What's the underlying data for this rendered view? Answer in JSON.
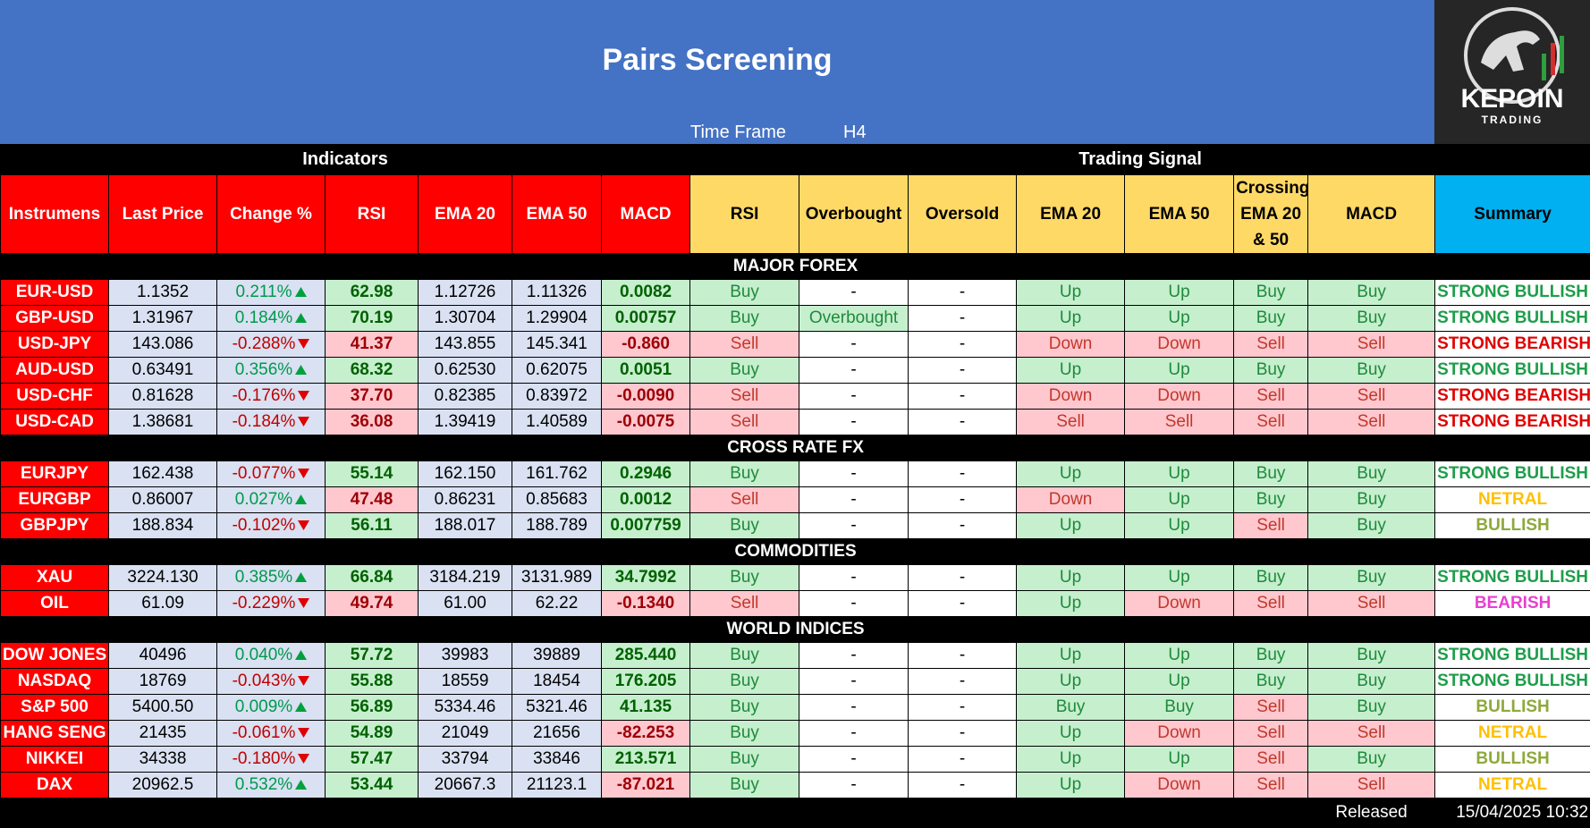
{
  "header": {
    "title": "Pairs Screening",
    "timeframe_label": "Time Frame",
    "timeframe": "H4",
    "logo": "KEPOIN",
    "logo_sub": "TRADING"
  },
  "groups": [
    "Indicators",
    "Trading Signal"
  ],
  "columns": [
    "Instrumens",
    "Last Price",
    "Change %",
    "RSI",
    "EMA 20",
    "EMA 50",
    "MACD",
    "RSI",
    "Overbought",
    "Oversold",
    "EMA 20",
    "EMA 50",
    "Crossing EMA 20 & 50",
    "MACD",
    "Summary"
  ],
  "column_fills": [
    "#ff0000",
    "#ff0000",
    "#ff0000",
    "#ff0000",
    "#ff0000",
    "#ff0000",
    "#ff0000",
    "#ffd966",
    "#ffd966",
    "#ffd966",
    "#ffd966",
    "#ffd966",
    "#ffd966",
    "#ffd966",
    "#00b0f0"
  ],
  "sections": [
    {
      "title": "MAJOR FOREX",
      "rows": [
        {
          "cells": [
            "EUR-USD",
            "1.1352",
            "0.211%",
            "62.98",
            "1.12726",
            "1.11326",
            "0.0082",
            "Buy",
            "-",
            "-",
            "Up",
            "Up",
            "Buy",
            "Buy",
            "STRONG BULLISH"
          ],
          "fills": [
            "#ff0000",
            "#d9e1f2",
            "#d9e1f2",
            "#c6efce",
            "#d9e1f2",
            "#d9e1f2",
            "#c6efce",
            "#c6efce",
            "#ffffff",
            "#ffffff",
            "#c6efce",
            "#c6efce",
            "#c6efce",
            "#c6efce",
            "#ffffff"
          ],
          "summary_color": "#1e9e4a"
        },
        {
          "cells": [
            "GBP-USD",
            "1.31967",
            "0.184%",
            "70.19",
            "1.30704",
            "1.29904",
            "0.00757",
            "Buy",
            "Overbought",
            "-",
            "Up",
            "Up",
            "Buy",
            "Buy",
            "STRONG BULLISH"
          ],
          "fills": [
            "#ff0000",
            "#d9e1f2",
            "#d9e1f2",
            "#c6efce",
            "#d9e1f2",
            "#d9e1f2",
            "#c6efce",
            "#c6efce",
            "#c6efce",
            "#ffffff",
            "#c6efce",
            "#c6efce",
            "#c6efce",
            "#c6efce",
            "#ffffff"
          ],
          "summary_color": "#1e9e4a"
        },
        {
          "cells": [
            "USD-JPY",
            "143.086",
            "-0.288%",
            "41.37",
            "143.855",
            "145.341",
            "-0.860",
            "Sell",
            "-",
            "-",
            "Down",
            "Down",
            "Sell",
            "Sell",
            "STRONG BEARISH"
          ],
          "fills": [
            "#ff0000",
            "#d9e1f2",
            "#d9e1f2",
            "#ffc7ce",
            "#d9e1f2",
            "#d9e1f2",
            "#ffc7ce",
            "#ffc7ce",
            "#ffffff",
            "#ffffff",
            "#ffc7ce",
            "#ffc7ce",
            "#ffc7ce",
            "#ffc7ce",
            "#ffffff"
          ],
          "summary_color": "#e00000"
        },
        {
          "cells": [
            "AUD-USD",
            "0.63491",
            "0.356%",
            "68.32",
            "0.62530",
            "0.62075",
            "0.0051",
            "Buy",
            "-",
            "-",
            "Up",
            "Up",
            "Buy",
            "Buy",
            "STRONG BULLISH"
          ],
          "fills": [
            "#ff0000",
            "#d9e1f2",
            "#d9e1f2",
            "#c6efce",
            "#d9e1f2",
            "#d9e1f2",
            "#c6efce",
            "#c6efce",
            "#ffffff",
            "#ffffff",
            "#c6efce",
            "#c6efce",
            "#c6efce",
            "#c6efce",
            "#ffffff"
          ],
          "summary_color": "#1e9e4a"
        },
        {
          "cells": [
            "USD-CHF",
            "0.81628",
            "-0.176%",
            "37.70",
            "0.82385",
            "0.83972",
            "-0.0090",
            "Sell",
            "-",
            "-",
            "Down",
            "Down",
            "Sell",
            "Sell",
            "STRONG BEARISH"
          ],
          "fills": [
            "#ff0000",
            "#d9e1f2",
            "#d9e1f2",
            "#ffc7ce",
            "#d9e1f2",
            "#d9e1f2",
            "#ffc7ce",
            "#ffc7ce",
            "#ffffff",
            "#ffffff",
            "#ffc7ce",
            "#ffc7ce",
            "#ffc7ce",
            "#ffc7ce",
            "#ffffff"
          ],
          "summary_color": "#e00000"
        },
        {
          "cells": [
            "USD-CAD",
            "1.38681",
            "-0.184%",
            "36.08",
            "1.39419",
            "1.40589",
            "-0.0075",
            "Sell",
            "-",
            "-",
            "Sell",
            "Sell",
            "Sell",
            "Sell",
            "STRONG BEARISH"
          ],
          "fills": [
            "#ff0000",
            "#d9e1f2",
            "#d9e1f2",
            "#ffc7ce",
            "#d9e1f2",
            "#d9e1f2",
            "#ffc7ce",
            "#ffc7ce",
            "#ffffff",
            "#ffffff",
            "#ffc7ce",
            "#ffc7ce",
            "#ffc7ce",
            "#ffc7ce",
            "#ffffff"
          ],
          "summary_color": "#e00000"
        }
      ]
    },
    {
      "title": "CROSS RATE FX",
      "rows": [
        {
          "cells": [
            "EURJPY",
            "162.438",
            "-0.077%",
            "55.14",
            "162.150",
            "161.762",
            "0.2946",
            "Buy",
            "-",
            "-",
            "Up",
            "Up",
            "Buy",
            "Buy",
            "STRONG BULLISH"
          ],
          "fills": [
            "#ff0000",
            "#d9e1f2",
            "#d9e1f2",
            "#c6efce",
            "#d9e1f2",
            "#d9e1f2",
            "#c6efce",
            "#c6efce",
            "#ffffff",
            "#ffffff",
            "#c6efce",
            "#c6efce",
            "#c6efce",
            "#c6efce",
            "#ffffff"
          ],
          "summary_color": "#1e9e4a"
        },
        {
          "cells": [
            "EURGBP",
            "0.86007",
            "0.027%",
            "47.48",
            "0.86231",
            "0.85683",
            "0.0012",
            "Sell",
            "-",
            "-",
            "Down",
            "Up",
            "Buy",
            "Buy",
            "NETRAL"
          ],
          "fills": [
            "#ff0000",
            "#d9e1f2",
            "#d9e1f2",
            "#ffc7ce",
            "#d9e1f2",
            "#d9e1f2",
            "#c6efce",
            "#ffc7ce",
            "#ffffff",
            "#ffffff",
            "#ffc7ce",
            "#c6efce",
            "#c6efce",
            "#c6efce",
            "#ffffff"
          ],
          "summary_color": "#ffc000"
        },
        {
          "cells": [
            "GBPJPY",
            "188.834",
            "-0.102%",
            "56.11",
            "188.017",
            "188.789",
            "0.007759",
            "Buy",
            "-",
            "-",
            "Up",
            "Up",
            "Sell",
            "Buy",
            "BULLISH"
          ],
          "fills": [
            "#ff0000",
            "#d9e1f2",
            "#d9e1f2",
            "#c6efce",
            "#d9e1f2",
            "#d9e1f2",
            "#c6efce",
            "#c6efce",
            "#ffffff",
            "#ffffff",
            "#c6efce",
            "#c6efce",
            "#ffc7ce",
            "#c6efce",
            "#ffffff"
          ],
          "summary_color": "#8ea93b"
        }
      ]
    },
    {
      "title": "COMMODITIES",
      "rows": [
        {
          "cells": [
            "XAU",
            "3224.130",
            "0.385%",
            "66.84",
            "3184.219",
            "3131.989",
            "34.7992",
            "Buy",
            "-",
            "-",
            "Up",
            "Up",
            "Buy",
            "Buy",
            "STRONG BULLISH"
          ],
          "fills": [
            "#ff0000",
            "#d9e1f2",
            "#d9e1f2",
            "#c6efce",
            "#d9e1f2",
            "#d9e1f2",
            "#c6efce",
            "#c6efce",
            "#ffffff",
            "#ffffff",
            "#c6efce",
            "#c6efce",
            "#c6efce",
            "#c6efce",
            "#ffffff"
          ],
          "summary_color": "#1e9e4a"
        },
        {
          "cells": [
            "OIL",
            "61.09",
            "-0.229%",
            "49.74",
            "61.00",
            "62.22",
            "-0.1340",
            "Sell",
            "-",
            "-",
            "Up",
            "Down",
            "Sell",
            "Sell",
            "BEARISH"
          ],
          "fills": [
            "#ff0000",
            "#d9e1f2",
            "#d9e1f2",
            "#ffc7ce",
            "#d9e1f2",
            "#d9e1f2",
            "#ffc7ce",
            "#ffc7ce",
            "#ffffff",
            "#ffffff",
            "#c6efce",
            "#ffc7ce",
            "#ffc7ce",
            "#ffc7ce",
            "#ffffff"
          ],
          "summary_color": "#e83fd0"
        }
      ]
    },
    {
      "title": "WORLD INDICES",
      "rows": [
        {
          "cells": [
            "DOW JONES",
            "40496",
            "0.040%",
            "57.72",
            "39983",
            "39889",
            "285.440",
            "Buy",
            "-",
            "-",
            "Up",
            "Up",
            "Buy",
            "Buy",
            "STRONG BULLISH"
          ],
          "fills": [
            "#ff0000",
            "#d9e1f2",
            "#d9e1f2",
            "#c6efce",
            "#d9e1f2",
            "#d9e1f2",
            "#c6efce",
            "#c6efce",
            "#ffffff",
            "#ffffff",
            "#c6efce",
            "#c6efce",
            "#c6efce",
            "#c6efce",
            "#ffffff"
          ],
          "summary_color": "#1e9e4a"
        },
        {
          "cells": [
            "NASDAQ",
            "18769",
            "-0.043%",
            "55.88",
            "18559",
            "18454",
            "176.205",
            "Buy",
            "-",
            "-",
            "Up",
            "Up",
            "Buy",
            "Buy",
            "STRONG BULLISH"
          ],
          "fills": [
            "#ff0000",
            "#d9e1f2",
            "#d9e1f2",
            "#c6efce",
            "#d9e1f2",
            "#d9e1f2",
            "#c6efce",
            "#c6efce",
            "#ffffff",
            "#ffffff",
            "#c6efce",
            "#c6efce",
            "#c6efce",
            "#c6efce",
            "#ffffff"
          ],
          "summary_color": "#1e9e4a"
        },
        {
          "cells": [
            "S&P 500",
            "5400.50",
            "0.009%",
            "56.89",
            "5334.46",
            "5321.46",
            "41.135",
            "Buy",
            "-",
            "-",
            "Buy",
            "Buy",
            "Sell",
            "Buy",
            "BULLISH"
          ],
          "fills": [
            "#ff0000",
            "#d9e1f2",
            "#d9e1f2",
            "#c6efce",
            "#d9e1f2",
            "#d9e1f2",
            "#c6efce",
            "#c6efce",
            "#ffffff",
            "#ffffff",
            "#c6efce",
            "#c6efce",
            "#ffc7ce",
            "#c6efce",
            "#ffffff"
          ],
          "summary_color": "#8ea93b"
        },
        {
          "cells": [
            "HANG SENG",
            "21435",
            "-0.061%",
            "54.89",
            "21049",
            "21656",
            "-82.253",
            "Buy",
            "-",
            "-",
            "Up",
            "Down",
            "Sell",
            "Sell",
            "NETRAL"
          ],
          "fills": [
            "#ff0000",
            "#d9e1f2",
            "#d9e1f2",
            "#c6efce",
            "#d9e1f2",
            "#d9e1f2",
            "#ffc7ce",
            "#c6efce",
            "#ffffff",
            "#ffffff",
            "#c6efce",
            "#ffc7ce",
            "#ffc7ce",
            "#ffc7ce",
            "#ffffff"
          ],
          "summary_color": "#ffc000"
        },
        {
          "cells": [
            "NIKKEI",
            "34338",
            "-0.180%",
            "57.47",
            "33794",
            "33846",
            "213.571",
            "Buy",
            "-",
            "-",
            "Up",
            "Up",
            "Sell",
            "Buy",
            "BULLISH"
          ],
          "fills": [
            "#ff0000",
            "#d9e1f2",
            "#d9e1f2",
            "#c6efce",
            "#d9e1f2",
            "#d9e1f2",
            "#c6efce",
            "#c6efce",
            "#ffffff",
            "#ffffff",
            "#c6efce",
            "#c6efce",
            "#ffc7ce",
            "#c6efce",
            "#ffffff"
          ],
          "summary_color": "#8ea93b"
        },
        {
          "cells": [
            "DAX",
            "20962.5",
            "0.532%",
            "53.44",
            "20667.3",
            "21123.1",
            "-87.021",
            "Buy",
            "-",
            "-",
            "Up",
            "Down",
            "Sell",
            "Sell",
            "NETRAL"
          ],
          "fills": [
            "#ff0000",
            "#d9e1f2",
            "#d9e1f2",
            "#c6efce",
            "#d9e1f2",
            "#d9e1f2",
            "#ffc7ce",
            "#c6efce",
            "#ffffff",
            "#ffffff",
            "#c6efce",
            "#ffc7ce",
            "#ffc7ce",
            "#ffc7ce",
            "#ffffff"
          ],
          "summary_color": "#ffc000"
        }
      ]
    }
  ],
  "footer": {
    "label": "Released",
    "date": "15/04/2025 10:32"
  }
}
